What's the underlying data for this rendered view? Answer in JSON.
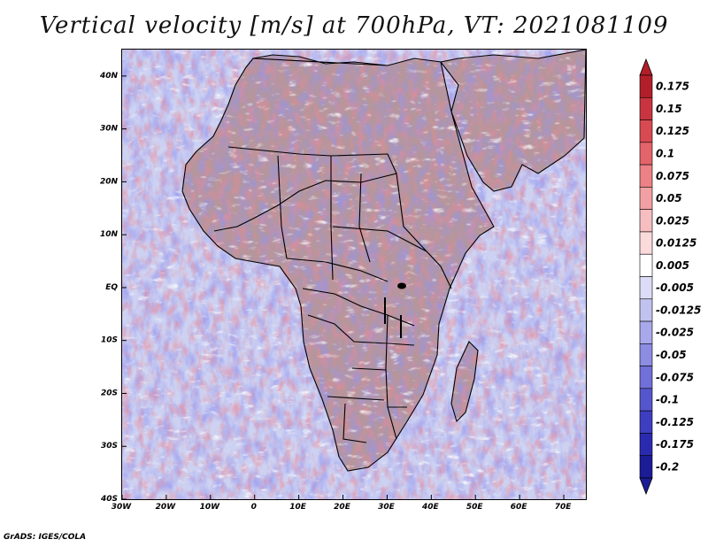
{
  "map": {
    "title": "Vertical velocity [m/s] at 700hPa, VT: 2021081109",
    "region": "Africa",
    "variable": "Vertical velocity",
    "units": "m/s",
    "level": "700hPa",
    "valid_time": "2021081109",
    "lon_range": [
      -30,
      75
    ],
    "lat_range": [
      -40,
      45
    ],
    "x_ticks": [
      "30W",
      "20W",
      "10W",
      "0",
      "10E",
      "20E",
      "30E",
      "40E",
      "50E",
      "60E",
      "70E"
    ],
    "y_ticks": [
      "40S",
      "30S",
      "20S",
      "10S",
      "EQ",
      "10N",
      "20N",
      "30N",
      "40N"
    ],
    "colors": {
      "ocean_base": "#cdd2f2",
      "land_base": "#f0c8d0",
      "strong_red": "#c0303a",
      "strong_blue": "#3a3ad0",
      "coast_line": "#000000"
    }
  },
  "colorbar": {
    "labels": [
      "0.175",
      "0.15",
      "0.125",
      "0.1",
      "0.075",
      "0.05",
      "0.025",
      "0.0125",
      "0.005",
      "-0.005",
      "-0.0125",
      "-0.025",
      "-0.05",
      "-0.075",
      "-0.1",
      "-0.125",
      "-0.175",
      "-0.2"
    ],
    "colors": [
      "#b21f2a",
      "#c83540",
      "#d84a52",
      "#e3646a",
      "#ec8186",
      "#f2a0a3",
      "#f6bec0",
      "#fadadb",
      "#ffffff",
      "#dcdcf6",
      "#c2c2f0",
      "#a8a8ea",
      "#8c8ce2",
      "#7070d8",
      "#5656cc",
      "#3e3ec0",
      "#2a2ab0",
      "#1c1c96"
    ]
  },
  "credit": "GrADS: IGES/COLA"
}
